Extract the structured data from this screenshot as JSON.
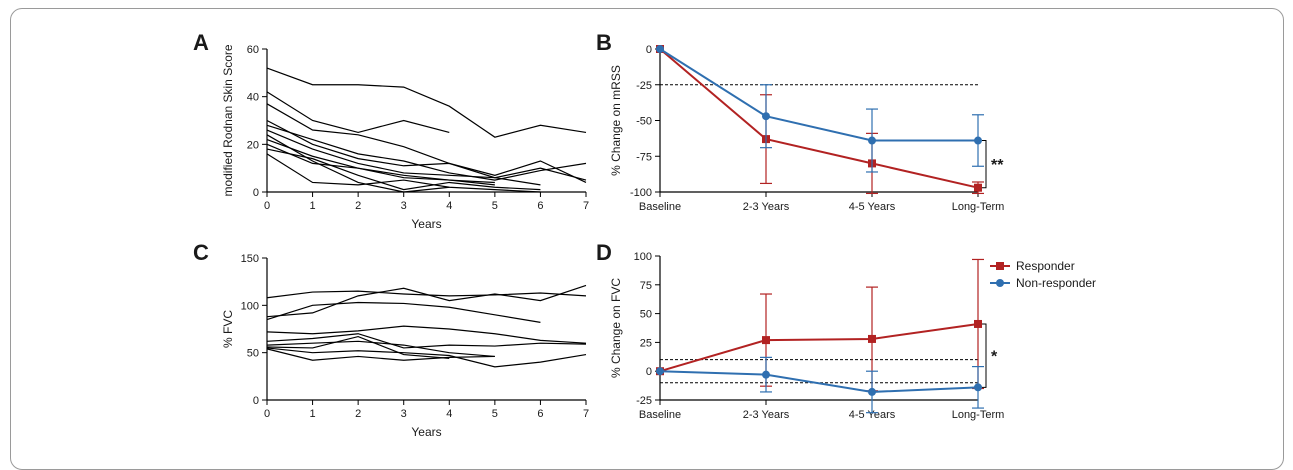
{
  "colors": {
    "responder": "#b22222",
    "nonresponder": "#2f6fb0",
    "line": "#000000"
  },
  "chart_data": [
    {
      "panel": "A",
      "type": "line",
      "xlabel": "Years",
      "ylabel": "modified Rodnan Skin Score",
      "xlim": [
        0,
        7
      ],
      "ylim": [
        0,
        60
      ],
      "xticks": [
        "0",
        "1",
        "2",
        "3",
        "4",
        "5",
        "6",
        "7"
      ],
      "yticks": [
        "0",
        "20",
        "40",
        "60"
      ],
      "series": [
        {
          "x": [
            0,
            1,
            2,
            3,
            4,
            5,
            6,
            7
          ],
          "y": [
            52,
            45,
            45,
            44,
            36,
            23,
            28,
            25
          ]
        },
        {
          "x": [
            0,
            1,
            2,
            3,
            4
          ],
          "y": [
            42,
            30,
            25,
            30,
            25
          ]
        },
        {
          "x": [
            0,
            1,
            2,
            3,
            4,
            5,
            6,
            7
          ],
          "y": [
            37,
            26,
            24,
            19,
            12,
            6,
            10,
            5
          ]
        },
        {
          "x": [
            0,
            1,
            2,
            3,
            4,
            5,
            6,
            7
          ],
          "y": [
            30,
            20,
            14,
            11,
            12,
            7,
            13,
            4
          ]
        },
        {
          "x": [
            0,
            1,
            2,
            3,
            4,
            5,
            6,
            7
          ],
          "y": [
            28,
            22,
            16,
            13,
            8,
            5,
            9,
            12
          ]
        },
        {
          "x": [
            0,
            1,
            2,
            3,
            4,
            5,
            6
          ],
          "y": [
            26,
            18,
            12,
            8,
            7,
            6,
            3
          ]
        },
        {
          "x": [
            0,
            1,
            2,
            3,
            4,
            5
          ],
          "y": [
            22,
            15,
            10,
            6,
            5,
            4
          ]
        },
        {
          "x": [
            0,
            1,
            2,
            3,
            4,
            5
          ],
          "y": [
            20,
            12,
            10,
            7,
            5,
            3
          ]
        },
        {
          "x": [
            0,
            1,
            2,
            3,
            4,
            5,
            6
          ],
          "y": [
            18,
            14,
            7,
            1,
            4,
            2,
            1
          ]
        },
        {
          "x": [
            0,
            1,
            2,
            3,
            4,
            5,
            6
          ],
          "y": [
            16,
            4,
            3,
            5,
            2,
            1,
            0
          ]
        },
        {
          "x": [
            0,
            1,
            2,
            3,
            4
          ],
          "y": [
            24,
            13,
            4,
            0,
            2
          ]
        }
      ]
    },
    {
      "panel": "B",
      "type": "line",
      "ylabel": "% Change on mRSS",
      "categories": [
        "Baseline",
        "2-3 Years",
        "4-5 Years",
        "Long-Term"
      ],
      "ylim": [
        -100,
        0
      ],
      "yticks": [
        "0",
        "-25",
        "-50",
        "-75",
        "-100"
      ],
      "reference_lines": [
        -25
      ],
      "series": [
        {
          "group": "responder",
          "values": [
            0,
            -63,
            -80,
            -97
          ],
          "err": [
            0,
            31,
            21,
            4
          ]
        },
        {
          "group": "nonresponder",
          "values": [
            0,
            -47,
            -64,
            -64
          ],
          "err": [
            0,
            22,
            22,
            18
          ]
        }
      ],
      "significance": "**"
    },
    {
      "panel": "C",
      "type": "line",
      "xlabel": "Years",
      "ylabel": "% FVC",
      "xlim": [
        0,
        7
      ],
      "ylim": [
        0,
        150
      ],
      "xticks": [
        "0",
        "1",
        "2",
        "3",
        "4",
        "5",
        "6",
        "7"
      ],
      "yticks": [
        "0",
        "50",
        "100",
        "150"
      ],
      "series": [
        {
          "x": [
            0,
            1,
            2,
            3,
            4,
            5,
            6,
            7
          ],
          "y": [
            108,
            114,
            115,
            112,
            110,
            111,
            113,
            110
          ]
        },
        {
          "x": [
            0,
            1,
            2,
            3,
            4,
            5,
            6,
            7
          ],
          "y": [
            88,
            92,
            110,
            118,
            105,
            112,
            105,
            121
          ]
        },
        {
          "x": [
            0,
            1,
            2,
            3,
            4,
            5,
            6
          ],
          "y": [
            85,
            100,
            103,
            102,
            98,
            90,
            82
          ]
        },
        {
          "x": [
            0,
            1,
            2,
            3,
            4,
            5,
            6,
            7
          ],
          "y": [
            72,
            70,
            73,
            78,
            75,
            70,
            63,
            60
          ]
        },
        {
          "x": [
            0,
            1,
            2,
            3,
            4,
            5,
            6,
            7
          ],
          "y": [
            62,
            65,
            70,
            55,
            58,
            57,
            60,
            59
          ]
        },
        {
          "x": [
            0,
            1,
            2,
            3,
            4,
            5
          ],
          "y": [
            58,
            60,
            62,
            58,
            50,
            46
          ]
        },
        {
          "x": [
            0,
            1,
            2,
            3,
            4,
            5,
            6,
            7
          ],
          "y": [
            55,
            50,
            52,
            50,
            47,
            35,
            40,
            48
          ]
        },
        {
          "x": [
            0,
            1,
            2,
            3,
            4,
            5
          ],
          "y": [
            54,
            42,
            46,
            42,
            45,
            46
          ]
        },
        {
          "x": [
            0,
            1,
            2,
            3,
            4
          ],
          "y": [
            56,
            55,
            67,
            48,
            44
          ]
        }
      ]
    },
    {
      "panel": "D",
      "type": "line",
      "ylabel": "% Change on FVC",
      "categories": [
        "Baseline",
        "2-3 Years",
        "4-5 Years",
        "Long-Term"
      ],
      "ylim": [
        -25,
        100
      ],
      "yticks": [
        "100",
        "75",
        "50",
        "25",
        "0",
        "-25"
      ],
      "reference_lines": [
        10,
        -10
      ],
      "series": [
        {
          "group": "responder",
          "name": "Responder",
          "values": [
            0,
            27,
            28,
            41
          ],
          "err": [
            0,
            40,
            45,
            56
          ]
        },
        {
          "group": "nonresponder",
          "name": "Non-responder",
          "values": [
            0,
            -3,
            -18,
            -14
          ],
          "err": [
            0,
            15,
            18,
            18
          ]
        }
      ],
      "significance": "*"
    }
  ]
}
